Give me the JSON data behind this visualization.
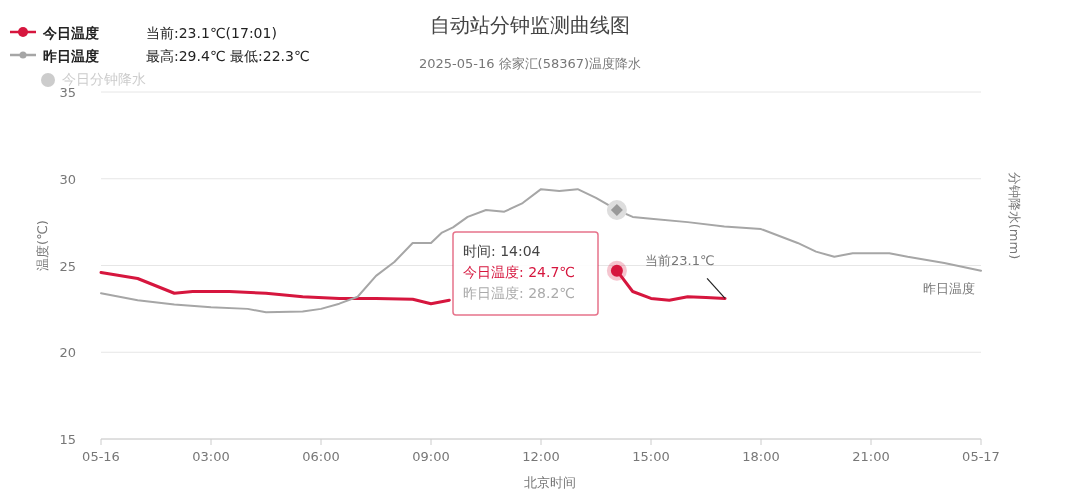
{
  "chart_data": {
    "type": "line",
    "title": "自动站分钟监测曲线图",
    "subtitle": "2025-05-16 徐家汇(58367)温度降水",
    "xlabel": "北京时间",
    "ylabel": "温度(℃)",
    "y2label": "分钟降水(mm)",
    "xlim": [
      0,
      24
    ],
    "xticks": [
      {
        "value": 0,
        "label": "05-16"
      },
      {
        "value": 3,
        "label": "03:00"
      },
      {
        "value": 6,
        "label": "06:00"
      },
      {
        "value": 9,
        "label": "09:00"
      },
      {
        "value": 12,
        "label": "12:00"
      },
      {
        "value": 15,
        "label": "15:00"
      },
      {
        "value": 18,
        "label": "18:00"
      },
      {
        "value": 21,
        "label": "21:00"
      },
      {
        "value": 24,
        "label": "05-17"
      }
    ],
    "ylim": [
      15,
      35
    ],
    "yticks": [
      15,
      20,
      25,
      30,
      35
    ],
    "grid": "y",
    "legend": "top left",
    "line_style": "solid",
    "marker": "none",
    "series": [
      {
        "name": "今日温度",
        "color": "#d6163e",
        "x": [
          0,
          1,
          2,
          2.5,
          3.5,
          4.5,
          5.5,
          6.5,
          7.5,
          8.5,
          9,
          9.5,
          10.5,
          11.5,
          12.5,
          13.5,
          14.07,
          14.5,
          15,
          15.5,
          16,
          16.5,
          17.02
        ],
        "values": [
          24.6,
          24.25,
          23.4,
          23.5,
          23.5,
          23.4,
          23.2,
          23.1,
          23.1,
          23.05,
          22.8,
          23,
          null,
          null,
          null,
          null,
          24.7,
          23.5,
          23.1,
          23,
          23.2,
          23.15,
          23.1
        ]
      },
      {
        "name": "昨日温度",
        "color": "#a6a6a6",
        "x": [
          0,
          1,
          2,
          3,
          4,
          4.5,
          5.5,
          6,
          6.5,
          7,
          7.5,
          8,
          8.5,
          9,
          9.3,
          9.6,
          10,
          10.5,
          11,
          11.5,
          12,
          12.5,
          13,
          13.5,
          14.07,
          14.5,
          15,
          16,
          17,
          18,
          19,
          19.5,
          20,
          20.5,
          21,
          21.5,
          22,
          23,
          24
        ],
        "values": [
          23.4,
          23,
          22.75,
          22.6,
          22.5,
          22.3,
          22.35,
          22.5,
          22.8,
          23.2,
          24.4,
          25.2,
          26.3,
          26.3,
          26.9,
          27.2,
          27.8,
          28.2,
          28.1,
          28.6,
          29.4,
          29.3,
          29.4,
          28.9,
          28.2,
          27.8,
          27.7,
          27.5,
          27.25,
          27.1,
          26.3,
          25.8,
          25.5,
          25.7,
          25.7,
          25.7,
          25.5,
          25.15,
          24.7
        ]
      },
      {
        "name": "今日分钟降水",
        "color": "#cccccc"
      }
    ],
    "annotations": [
      "当前:23.1℃(17:01)",
      "最高:29.4℃ 最低:22.3℃",
      "时间: 14:04",
      "今日温度: 24.7℃",
      "昨日温度: 28.2℃",
      {
        "text": "当前23.1℃",
        "x": 17.02,
        "y": 23.1
      }
    ]
  }
}
